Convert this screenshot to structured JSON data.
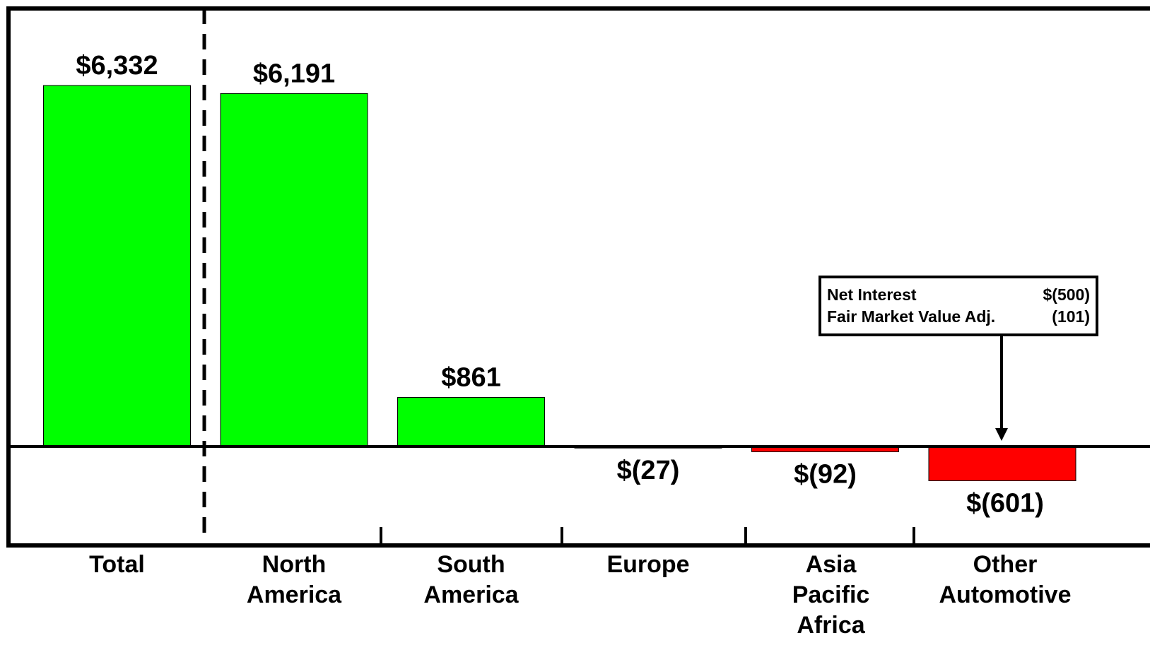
{
  "chart_data": {
    "type": "bar",
    "categories": [
      "Total",
      "North America",
      "South America",
      "Europe",
      "Asia Pacific Africa",
      "Other Automotive"
    ],
    "category_lines": [
      [
        "Total"
      ],
      [
        "North",
        "America"
      ],
      [
        "South",
        "America"
      ],
      [
        "Europe"
      ],
      [
        "Asia",
        "Pacific",
        "Africa"
      ],
      [
        "Other",
        "Automotive"
      ]
    ],
    "values": [
      6332,
      6191,
      861,
      -27,
      -92,
      -601
    ],
    "value_labels": [
      "$6,332",
      "$6,191",
      "$861",
      "$(27)",
      "$(92)",
      "$(601)"
    ],
    "colors": {
      "positive": "#00ff00",
      "negative": "#ff0000",
      "axis": "#000000"
    },
    "ylim": [
      -1700,
      7700
    ],
    "grid": false,
    "legend": "none",
    "annotation": {
      "rows": [
        {
          "label": "Net Interest",
          "value": "$(500)"
        },
        {
          "label": "Fair Market Value Adj.",
          "value": "(101)"
        }
      ]
    }
  }
}
